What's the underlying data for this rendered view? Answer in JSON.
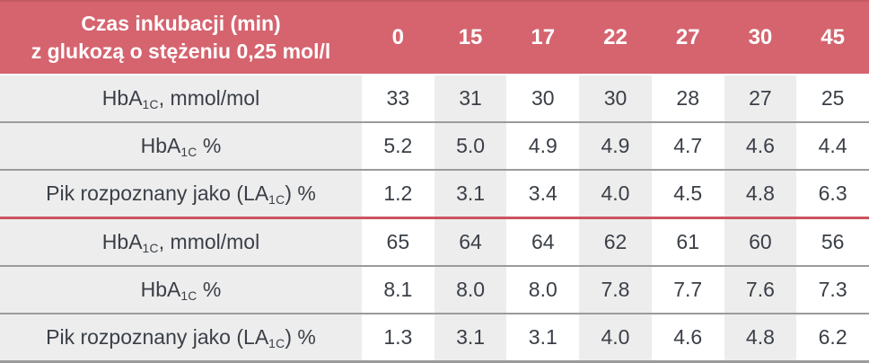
{
  "colors": {
    "header_bg": "#d5646f",
    "header_top_edge": "#c45a65",
    "header_text": "#ffffff",
    "stripe_gray": "#ededed",
    "stripe_white": "#ffffff",
    "row_separator": "#9b9b9b",
    "section_divider_red": "#ca5460",
    "bottom_border": "#9b9b9b",
    "body_text": "#3a3f47"
  },
  "table": {
    "header": {
      "title_line1": "Czas inkubacji (min)",
      "title_line2": "z glukozą o stężeniu 0,25 mol/l",
      "columns": [
        "0",
        "15",
        "17",
        "22",
        "27",
        "30",
        "45"
      ]
    },
    "rows": [
      {
        "label_prefix": "HbA",
        "label_sub": "1C",
        "label_suffix": ", mmol/mol",
        "values": [
          "33",
          "31",
          "30",
          "30",
          "28",
          "27",
          "25"
        ]
      },
      {
        "label_prefix": "HbA",
        "label_sub": "1C",
        "label_suffix": " %",
        "values": [
          "5.2",
          "5.0",
          "4.9",
          "4.9",
          "4.7",
          "4.6",
          "4.4"
        ]
      },
      {
        "label_prefix": "Pik rozpoznany jako (LA",
        "label_sub": "1C",
        "label_suffix": ") %",
        "values": [
          "1.2",
          "3.1",
          "3.4",
          "4.0",
          "4.5",
          "4.8",
          "6.3"
        ]
      },
      {
        "label_prefix": "HbA",
        "label_sub": "1C",
        "label_suffix": ", mmol/mol",
        "values": [
          "65",
          "64",
          "64",
          "62",
          "61",
          "60",
          "56"
        ]
      },
      {
        "label_prefix": "HbA",
        "label_sub": "1C",
        "label_suffix": " %",
        "values": [
          "8.1",
          "8.0",
          "8.0",
          "7.8",
          "7.7",
          "7.6",
          "7.3"
        ]
      },
      {
        "label_prefix": "Pik rozpoznany jako (LA",
        "label_sub": "1C",
        "label_suffix": ") %",
        "values": [
          "1.3",
          "3.1",
          "3.1",
          "4.0",
          "4.6",
          "4.8",
          "6.2"
        ]
      }
    ]
  },
  "chart_data": {
    "type": "table",
    "title": "Czas inkubacji (min) z glukozą o stężeniu 0,25 mol/l",
    "categories": [
      0,
      15,
      17,
      22,
      27,
      30,
      45
    ],
    "series": [
      {
        "name": "HbA1C, mmol/mol",
        "values": [
          33,
          31,
          30,
          30,
          28,
          27,
          25
        ]
      },
      {
        "name": "HbA1C %",
        "values": [
          5.2,
          5.0,
          4.9,
          4.9,
          4.7,
          4.6,
          4.4
        ]
      },
      {
        "name": "Pik rozpoznany jako (LA1C) %",
        "values": [
          1.2,
          3.1,
          3.4,
          4.0,
          4.5,
          4.8,
          6.3
        ]
      },
      {
        "name": "HbA1C, mmol/mol",
        "values": [
          65,
          64,
          64,
          62,
          61,
          60,
          56
        ]
      },
      {
        "name": "HbA1C %",
        "values": [
          8.1,
          8.0,
          8.0,
          7.8,
          7.7,
          7.6,
          7.3
        ]
      },
      {
        "name": "Pik rozpoznany jako (LA1C) %",
        "values": [
          1.3,
          3.1,
          3.1,
          4.0,
          4.6,
          4.8,
          6.2
        ]
      }
    ]
  }
}
